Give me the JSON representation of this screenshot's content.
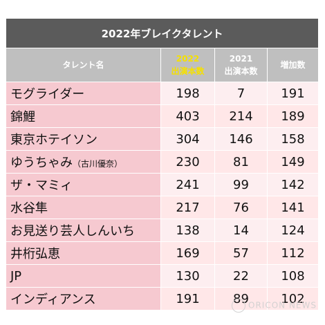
{
  "chart_data": {
    "type": "table",
    "title": "2022年ブレイクタレント",
    "columns": [
      "タレント名",
      "2022\n出演本数",
      "2021\n出演本数",
      "増加数"
    ],
    "headers": {
      "name": "タレント名",
      "y2022_year": "2022",
      "y2022_label": "出演本数",
      "y2021_year": "2021",
      "y2021_label": "出演本数",
      "increase": "増加数"
    },
    "rows": [
      {
        "name": "モグライダー",
        "sub": "",
        "v2022": "198",
        "v2021": "7",
        "inc": "191"
      },
      {
        "name": "錦鯉",
        "sub": "",
        "v2022": "403",
        "v2021": "214",
        "inc": "189"
      },
      {
        "name": "東京ホテイソン",
        "sub": "",
        "v2022": "304",
        "v2021": "146",
        "inc": "158"
      },
      {
        "name": "ゆうちゃみ",
        "sub": "（古川優奈）",
        "v2022": "230",
        "v2021": "81",
        "inc": "149"
      },
      {
        "name": "ザ・マミィ",
        "sub": "",
        "v2022": "241",
        "v2021": "99",
        "inc": "142"
      },
      {
        "name": "水谷隼",
        "sub": "",
        "v2022": "217",
        "v2021": "76",
        "inc": "141"
      },
      {
        "name": "お見送り芸人しんいち",
        "sub": "",
        "v2022": "138",
        "v2021": "14",
        "inc": "124"
      },
      {
        "name": "井桁弘恵",
        "sub": "",
        "v2022": "169",
        "v2021": "57",
        "inc": "112"
      },
      {
        "name": "JP",
        "sub": "",
        "v2022": "130",
        "v2021": "22",
        "inc": "108"
      },
      {
        "name": "インディアンス",
        "sub": "",
        "v2022": "191",
        "v2021": "89",
        "inc": "102"
      }
    ]
  },
  "watermark": "ORICON NEWS",
  "colors": {
    "title_bg": "#5b5b5b",
    "header_bg": "#bfbfbf",
    "highlight_year": "#f5e000",
    "name_cell": "#f6c9d0",
    "value_cell": "#ffe7e8"
  }
}
